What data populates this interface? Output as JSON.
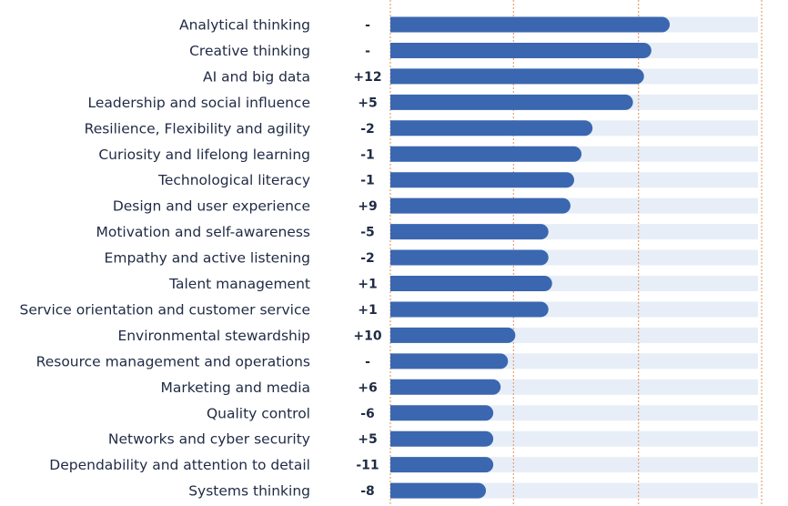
{
  "chart_data": {
    "type": "bar",
    "orientation": "horizontal",
    "categories": [
      "Analytical thinking",
      "Creative thinking",
      "AI and big data",
      "Leadership and social influence",
      "Resilience, Flexibility and agility",
      "Curiosity and lifelong learning",
      "Technological literacy",
      "Design and user experience",
      "Motivation and self-awareness",
      "Empathy and active listening",
      "Talent management",
      "Service orientation and customer service",
      "Environmental stewardship",
      "Resource management and operations",
      "Marketing and media",
      "Quality control",
      "Networks and cyber security",
      "Dependability and attention to detail",
      "Systems thinking"
    ],
    "changes": [
      "-",
      "-",
      "+12",
      "+5",
      "-2",
      "-1",
      "-1",
      "+9",
      "-5",
      "-2",
      "+1",
      "+1",
      "+10",
      "-",
      "+6",
      "-6",
      "+5",
      "-11",
      "-8"
    ],
    "values": [
      76,
      71,
      69,
      66,
      55,
      52,
      50,
      49,
      43,
      43,
      44,
      43,
      34,
      32,
      30,
      28,
      28,
      28,
      26
    ],
    "xlim": [
      0,
      100
    ],
    "gridlines": [
      33.5,
      67.5,
      101
    ],
    "grid": true,
    "colors": {
      "bar": "#3a67b0",
      "track": "#e8eef7",
      "gridline": "#e0a47a",
      "text": "#1f2a44"
    }
  }
}
